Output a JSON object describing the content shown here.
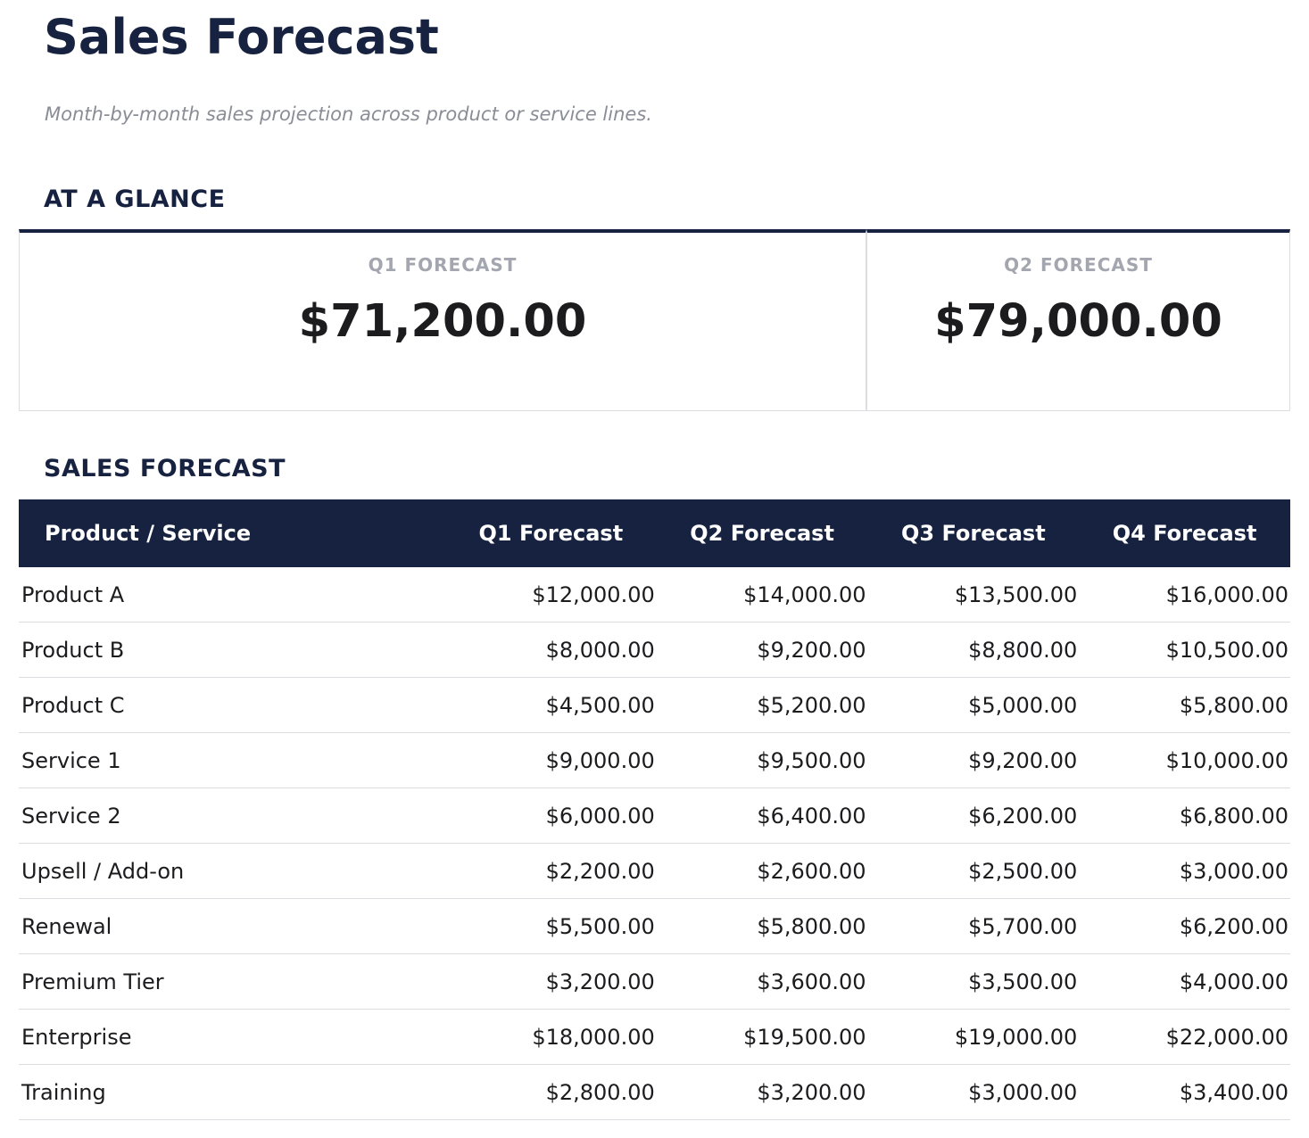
{
  "header": {
    "title": "Sales Forecast",
    "subtitle": "Month-by-month sales projection across product or service lines."
  },
  "glance": {
    "heading": "AT A GLANCE",
    "cards": [
      {
        "label": "Q1 FORECAST",
        "value": "$71,200.00"
      },
      {
        "label": "Q2 FORECAST",
        "value": "$79,000.00"
      }
    ]
  },
  "table": {
    "heading": "SALES FORECAST",
    "columns": [
      "Product / Service",
      "Q1 Forecast",
      "Q2 Forecast",
      "Q3 Forecast",
      "Q4 Forecast"
    ],
    "rows": [
      [
        "Product A",
        "$12,000.00",
        "$14,000.00",
        "$13,500.00",
        "$16,000.00"
      ],
      [
        "Product B",
        "$8,000.00",
        "$9,200.00",
        "$8,800.00",
        "$10,500.00"
      ],
      [
        "Product C",
        "$4,500.00",
        "$5,200.00",
        "$5,000.00",
        "$5,800.00"
      ],
      [
        "Service 1",
        "$9,000.00",
        "$9,500.00",
        "$9,200.00",
        "$10,000.00"
      ],
      [
        "Service 2",
        "$6,000.00",
        "$6,400.00",
        "$6,200.00",
        "$6,800.00"
      ],
      [
        "Upsell / Add-on",
        "$2,200.00",
        "$2,600.00",
        "$2,500.00",
        "$3,000.00"
      ],
      [
        "Renewal",
        "$5,500.00",
        "$5,800.00",
        "$5,700.00",
        "$6,200.00"
      ],
      [
        "Premium Tier",
        "$3,200.00",
        "$3,600.00",
        "$3,500.00",
        "$4,000.00"
      ],
      [
        "Enterprise",
        "$18,000.00",
        "$19,500.00",
        "$19,000.00",
        "$22,000.00"
      ],
      [
        "Training",
        "$2,800.00",
        "$3,200.00",
        "$3,000.00",
        "$3,400.00"
      ]
    ]
  }
}
